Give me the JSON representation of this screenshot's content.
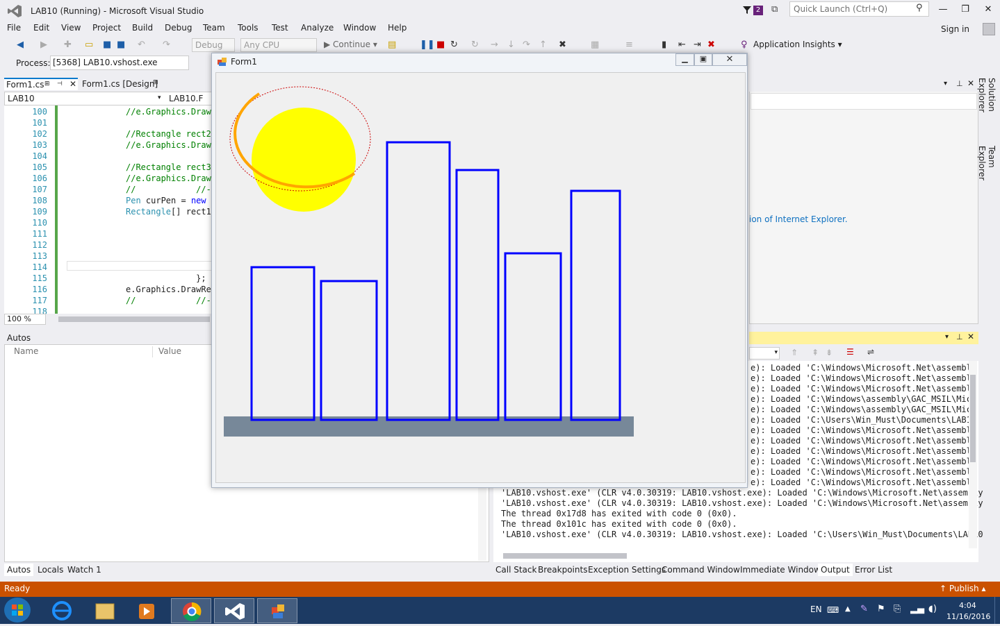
{
  "titlebar": {
    "title": "LAB10 (Running) - Microsoft Visual Studio",
    "notif_count": "2",
    "quick_launch_placeholder": "Quick Launch (Ctrl+Q)"
  },
  "menu": {
    "items": [
      "File",
      "Edit",
      "View",
      "Project",
      "Build",
      "Debug",
      "Team",
      "Tools",
      "Test",
      "Analyze",
      "Window",
      "Help"
    ],
    "signin": "Sign in"
  },
  "toolbar": {
    "config": "Debug",
    "platform": "Any CPU",
    "continue": "Continue",
    "app_insights": "Application Insights"
  },
  "process": {
    "label": "Process:",
    "value": "[5368] LAB10.vshost.exe"
  },
  "tabs": {
    "tab1": "Form1.cs",
    "tab2": "Form1.cs [Design]",
    "nav_left": "LAB10",
    "nav_right": "LAB10.F"
  },
  "editor": {
    "lines": [
      {
        "n": "100",
        "t": "//e.Graphics.DrawI",
        "c": "cmt"
      },
      {
        "n": "101",
        "t": "",
        "c": ""
      },
      {
        "n": "102",
        "t": "//Rectangle rect2",
        "c": "cmt"
      },
      {
        "n": "103",
        "t": "//e.Graphics.DrawI",
        "c": "cmt"
      },
      {
        "n": "104",
        "t": "",
        "c": ""
      },
      {
        "n": "105",
        "t": "//Rectangle rect3",
        "c": "cmt"
      },
      {
        "n": "106",
        "t": "//e.Graphics.DrawI",
        "c": "cmt"
      },
      {
        "n": "107",
        "t": "//            //-",
        "c": "cmt"
      },
      {
        "n": "108",
        "t": "Pen curPen = new",
        "c": "mix1"
      },
      {
        "n": "109",
        "t": "Rectangle[] rect1",
        "c": "mix2"
      },
      {
        "n": "110",
        "t": "",
        "c": ""
      },
      {
        "n": "111",
        "t": "",
        "c": ""
      },
      {
        "n": "112",
        "t": "",
        "c": ""
      },
      {
        "n": "113",
        "t": "",
        "c": ""
      },
      {
        "n": "114",
        "t": "",
        "c": ""
      },
      {
        "n": "115",
        "t": "              };",
        "c": ""
      },
      {
        "n": "116",
        "t": "e.Graphics.DrawRe",
        "c": ""
      },
      {
        "n": "117",
        "t": "//            //-",
        "c": "cmt"
      },
      {
        "n": "118",
        "t": "",
        "c": ""
      }
    ],
    "zoom": "100 %"
  },
  "right_panel": {
    "ie_text": "ion of Internet Explorer.",
    "solution_explorer": "Solution Explorer",
    "team_explorer": "Team Explorer"
  },
  "autos": {
    "title": "Autos",
    "col_name": "Name",
    "col_value": "Value",
    "tabs": [
      "Autos",
      "Locals",
      "Watch 1"
    ]
  },
  "output": {
    "lines": [
      "e): Loaded 'C:\\Windows\\Microsoft.Net\\assembly",
      "e): Loaded 'C:\\Windows\\Microsoft.Net\\assembly",
      "e): Loaded 'C:\\Windows\\Microsoft.Net\\assembly",
      "e): Loaded 'C:\\Windows\\assembly\\GAC_MSIL\\Micr",
      "e): Loaded 'C:\\Windows\\assembly\\GAC_MSIL\\Micr",
      "e): Loaded 'C:\\Users\\Win_Must\\Documents\\LAB10",
      "e): Loaded 'C:\\Windows\\Microsoft.Net\\assembly",
      "e): Loaded 'C:\\Windows\\Microsoft.Net\\assembly",
      "e): Loaded 'C:\\Windows\\Microsoft.Net\\assembly",
      "e): Loaded 'C:\\Windows\\Microsoft.Net\\assembly",
      "e): Loaded 'C:\\Windows\\Microsoft.Net\\assembly",
      "e): Loaded 'C:\\Windows\\Microsoft.Net\\assembly"
    ],
    "full_lines": [
      "'LAB10.vshost.exe' (CLR v4.0.30319: LAB10.vshost.exe): Loaded 'C:\\Windows\\Microsoft.Net\\assembly",
      "'LAB10.vshost.exe' (CLR v4.0.30319: LAB10.vshost.exe): Loaded 'C:\\Windows\\Microsoft.Net\\assembly",
      "The thread 0x17d8 has exited with code 0 (0x0).",
      "The thread 0x101c has exited with code 0 (0x0).",
      "'LAB10.vshost.exe' (CLR v4.0.30319: LAB10.vshost.exe): Loaded 'C:\\Users\\Win_Must\\Documents\\LAB10"
    ],
    "tabs": [
      "Call Stack",
      "Breakpoints",
      "Exception Settings",
      "Command Window",
      "Immediate Window",
      "Output",
      "Error List"
    ]
  },
  "status": {
    "text": "Ready",
    "publish": "Publish"
  },
  "taskbar": {
    "lang": "EN",
    "time": "4:04",
    "date": "11/16/2016"
  },
  "form1": {
    "title": "Form1"
  },
  "colors": {
    "accent": "#007acc",
    "status": "#ca5100",
    "bar_outline": "#0000ff",
    "sun": "#ffff00",
    "orbit": "#ffa500",
    "ground": "#778899"
  }
}
